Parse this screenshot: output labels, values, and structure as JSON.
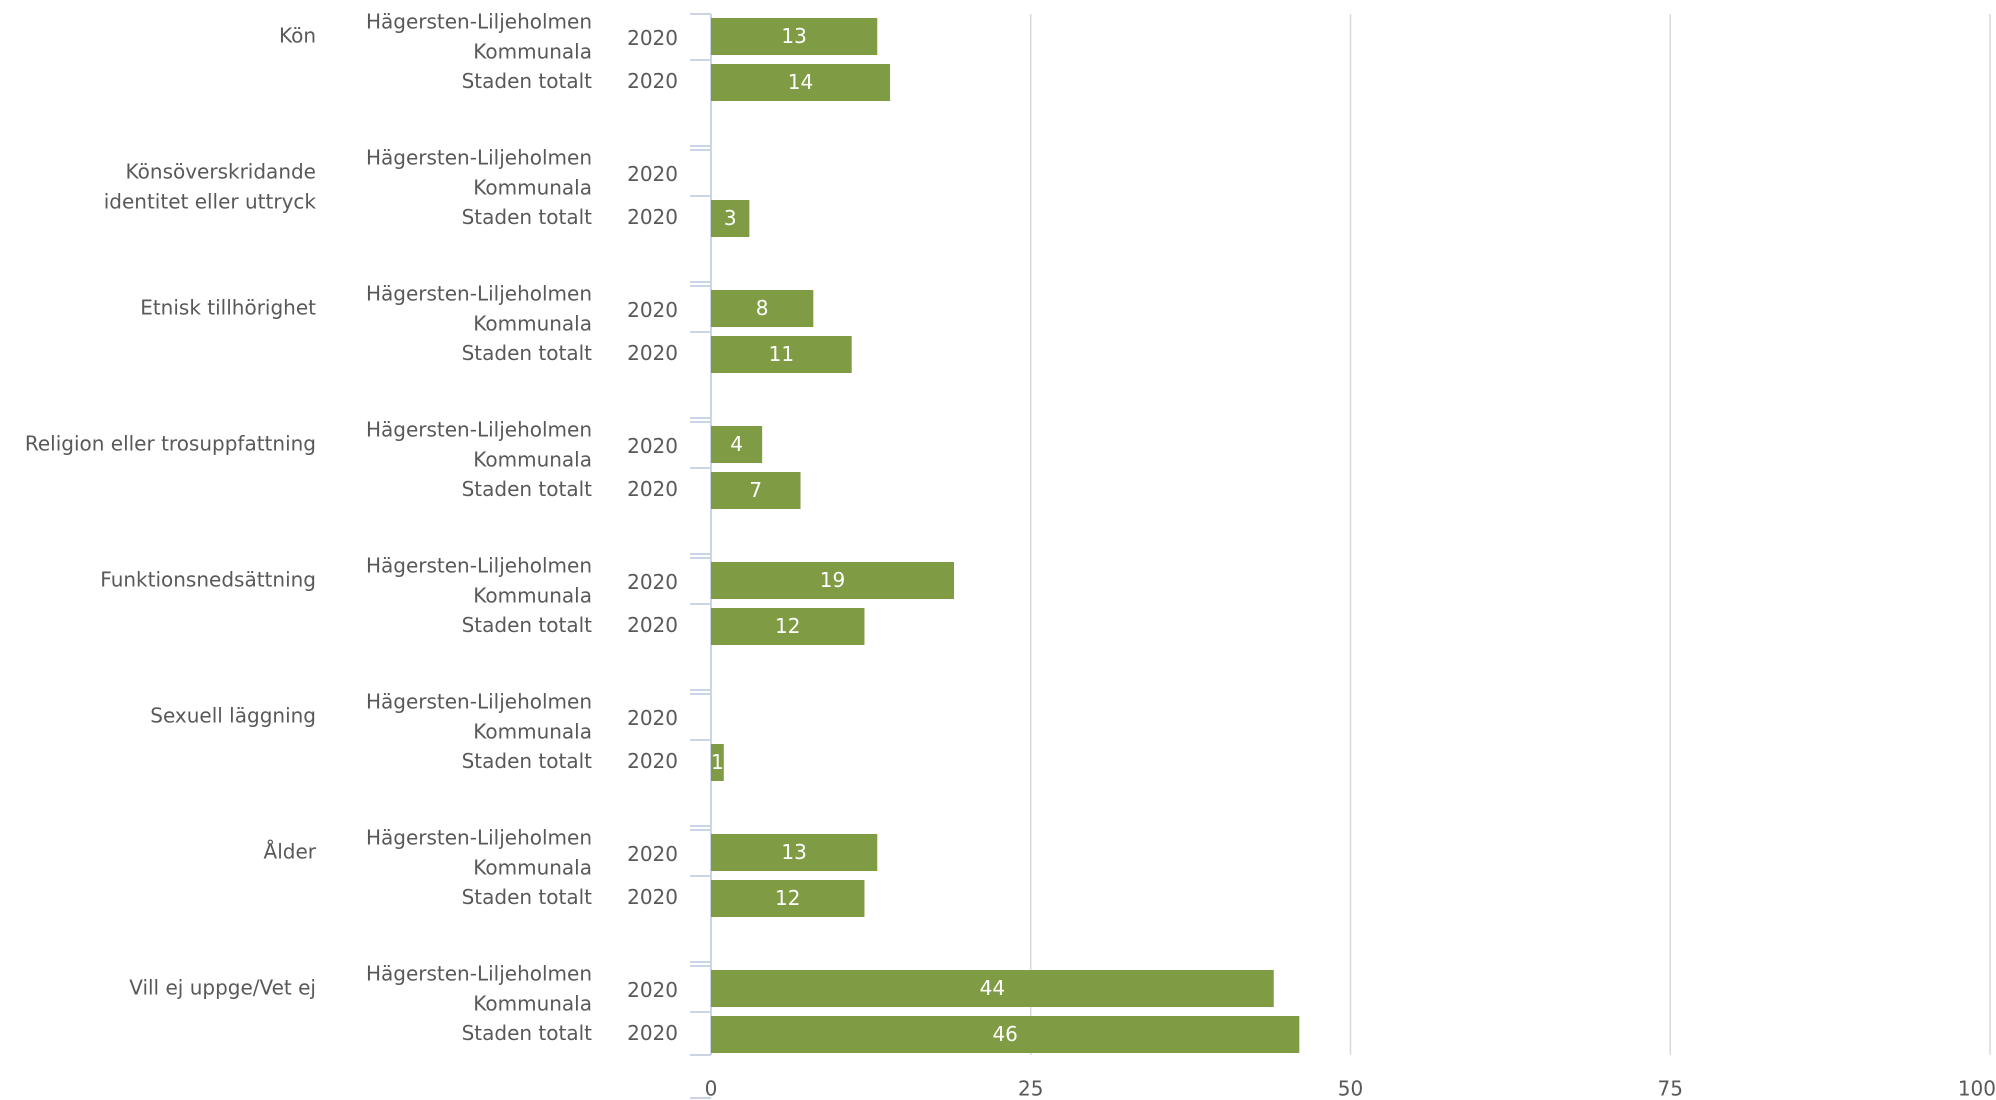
{
  "chart_data": {
    "type": "bar",
    "orientation": "horizontal",
    "title": "",
    "xlabel": "",
    "ylabel": "",
    "xlim": [
      0,
      100
    ],
    "xticks": [
      0,
      25,
      50,
      75,
      100
    ],
    "grid": true,
    "legend": "none",
    "bar_color": "#7F9C45",
    "year": "2020",
    "groups": [
      {
        "category": [
          "Kön"
        ],
        "bars": [
          {
            "label": [
              "Hägersten-Liljeholmen",
              "Kommunala"
            ],
            "year": "2020",
            "value": 13
          },
          {
            "label": [
              "Staden totalt"
            ],
            "year": "2020",
            "value": 14
          }
        ]
      },
      {
        "category": [
          "Könsöverskridande",
          "identitet eller uttryck"
        ],
        "bars": [
          {
            "label": [
              "Hägersten-Liljeholmen",
              "Kommunala"
            ],
            "year": "2020",
            "value": null
          },
          {
            "label": [
              "Staden totalt"
            ],
            "year": "2020",
            "value": 3
          }
        ]
      },
      {
        "category": [
          "Etnisk tillhörighet"
        ],
        "bars": [
          {
            "label": [
              "Hägersten-Liljeholmen",
              "Kommunala"
            ],
            "year": "2020",
            "value": 8
          },
          {
            "label": [
              "Staden totalt"
            ],
            "year": "2020",
            "value": 11
          }
        ]
      },
      {
        "category": [
          "Religion eller trosuppfattning"
        ],
        "bars": [
          {
            "label": [
              "Hägersten-Liljeholmen",
              "Kommunala"
            ],
            "year": "2020",
            "value": 4
          },
          {
            "label": [
              "Staden totalt"
            ],
            "year": "2020",
            "value": 7
          }
        ]
      },
      {
        "category": [
          "Funktionsnedsättning"
        ],
        "bars": [
          {
            "label": [
              "Hägersten-Liljeholmen",
              "Kommunala"
            ],
            "year": "2020",
            "value": 19
          },
          {
            "label": [
              "Staden totalt"
            ],
            "year": "2020",
            "value": 12
          }
        ]
      },
      {
        "category": [
          "Sexuell läggning"
        ],
        "bars": [
          {
            "label": [
              "Hägersten-Liljeholmen",
              "Kommunala"
            ],
            "year": "2020",
            "value": null
          },
          {
            "label": [
              "Staden totalt"
            ],
            "year": "2020",
            "value": 1
          }
        ]
      },
      {
        "category": [
          "Ålder"
        ],
        "bars": [
          {
            "label": [
              "Hägersten-Liljeholmen",
              "Kommunala"
            ],
            "year": "2020",
            "value": 13
          },
          {
            "label": [
              "Staden totalt"
            ],
            "year": "2020",
            "value": 12
          }
        ]
      },
      {
        "category": [
          "Vill ej uppge/Vet ej"
        ],
        "bars": [
          {
            "label": [
              "Hägersten-Liljeholmen",
              "Kommunala"
            ],
            "year": "2020",
            "value": 44
          },
          {
            "label": [
              "Staden totalt"
            ],
            "year": "2020",
            "value": 46
          }
        ]
      }
    ]
  }
}
